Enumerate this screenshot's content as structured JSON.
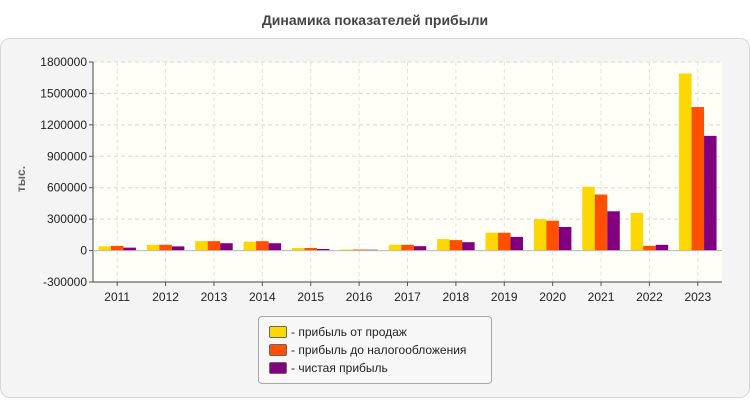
{
  "chart_data": {
    "type": "bar",
    "title": "Динамика показателей прибыли",
    "ylabel": "тыс.",
    "xlabel": "",
    "categories": [
      "2011",
      "2012",
      "2013",
      "2014",
      "2015",
      "2016",
      "2017",
      "2018",
      "2019",
      "2020",
      "2021",
      "2022",
      "2023"
    ],
    "ylim": [
      -300000,
      1800000
    ],
    "yticks": [
      -300000,
      0,
      300000,
      600000,
      900000,
      1200000,
      1500000,
      1800000
    ],
    "grid": true,
    "legend_position": "bottom",
    "series": [
      {
        "name": "- прибыль от продаж",
        "color": "#ffd700",
        "values": [
          40000,
          55000,
          90000,
          85000,
          25000,
          10000,
          55000,
          110000,
          170000,
          300000,
          610000,
          360000,
          1690000
        ]
      },
      {
        "name": "- прибыль до налогообложения",
        "color": "#ff5000",
        "values": [
          45000,
          55000,
          90000,
          90000,
          25000,
          10000,
          55000,
          100000,
          170000,
          285000,
          535000,
          45000,
          1370000
        ]
      },
      {
        "name": "- чистая прибыль",
        "color": "#800080",
        "values": [
          28000,
          40000,
          70000,
          70000,
          15000,
          8000,
          42000,
          80000,
          130000,
          225000,
          375000,
          55000,
          1095000
        ]
      }
    ]
  }
}
